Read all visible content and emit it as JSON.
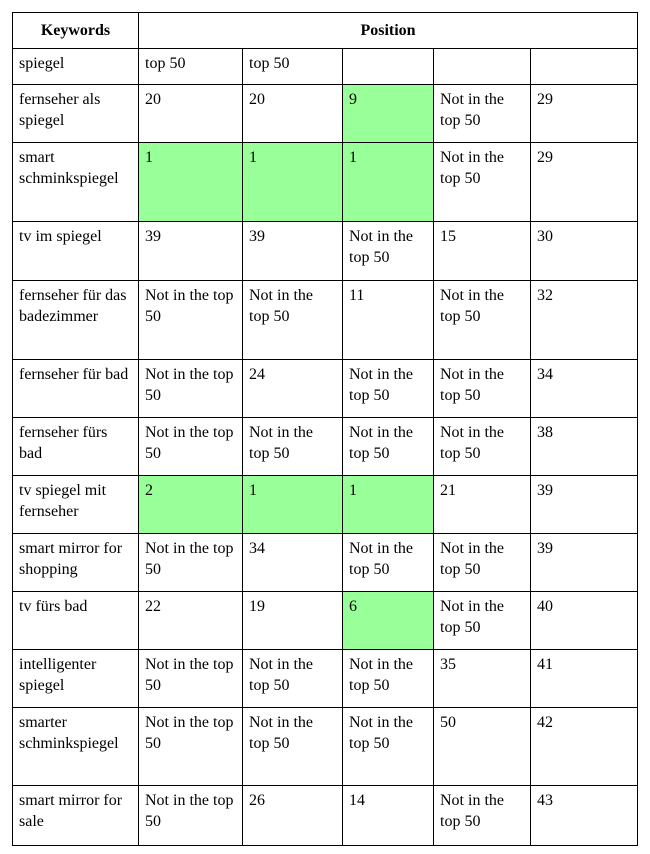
{
  "header": {
    "keywords": "Keywords",
    "position": "Position"
  },
  "highlight_color": "#99ff99",
  "rows": [
    {
      "keyword": "spiegel",
      "cells": [
        "top 50",
        "top 50",
        "",
        "",
        ""
      ],
      "highlight": [
        false,
        false,
        false,
        false,
        false
      ]
    },
    {
      "keyword": "fernseher als spiegel",
      "cells": [
        "20",
        "20",
        "9",
        "Not in the top 50",
        "29"
      ],
      "highlight": [
        false,
        false,
        true,
        false,
        false
      ]
    },
    {
      "keyword": "smart schminkspiegel",
      "cells": [
        "1",
        "1",
        "1",
        "Not in the top 50",
        "29"
      ],
      "highlight": [
        true,
        true,
        true,
        false,
        false
      ]
    },
    {
      "keyword": "tv im spiegel",
      "cells": [
        "39",
        "39",
        "Not in the top 50",
        "15",
        "30"
      ],
      "highlight": [
        false,
        false,
        false,
        false,
        false
      ]
    },
    {
      "keyword": "fernseher für das badezimmer",
      "cells": [
        "Not in the top 50",
        "Not in the top 50",
        "11",
        "Not in the top 50",
        "32"
      ],
      "highlight": [
        false,
        false,
        false,
        false,
        false
      ]
    },
    {
      "keyword": "fernseher für bad",
      "cells": [
        "Not in the top 50",
        "24",
        "Not in the top 50",
        "Not in the top 50",
        "34"
      ],
      "highlight": [
        false,
        false,
        false,
        false,
        false
      ]
    },
    {
      "keyword": "fernseher fürs bad",
      "cells": [
        "Not in the top 50",
        "Not in the top 50",
        "Not in the top 50",
        "Not in the top 50",
        "38"
      ],
      "highlight": [
        false,
        false,
        false,
        false,
        false
      ]
    },
    {
      "keyword": "tv spiegel mit fernseher",
      "cells": [
        "2",
        "1",
        "1",
        "21",
        "39"
      ],
      "highlight": [
        true,
        true,
        true,
        false,
        false
      ]
    },
    {
      "keyword": "smart mirror for shopping",
      "cells": [
        "Not in the top 50",
        "34",
        "Not in the top 50",
        "Not in the top 50",
        "39"
      ],
      "highlight": [
        false,
        false,
        false,
        false,
        false
      ]
    },
    {
      "keyword": "tv fürs bad",
      "cells": [
        "22",
        "19",
        "6",
        "Not in the top 50",
        "40"
      ],
      "highlight": [
        false,
        false,
        true,
        false,
        false
      ]
    },
    {
      "keyword": "intelligenter spiegel",
      "cells": [
        "Not in the top 50",
        "Not in the top 50",
        "Not in the top 50",
        "35",
        "41"
      ],
      "highlight": [
        false,
        false,
        false,
        false,
        false
      ]
    },
    {
      "keyword": "smarter schminkspiegel",
      "cells": [
        "Not in the top 50",
        "Not in the top 50",
        "Not in the top 50",
        "50",
        "42"
      ],
      "highlight": [
        false,
        false,
        false,
        false,
        false
      ]
    },
    {
      "keyword": "smart mirror for sale",
      "cells": [
        "Not in the top 50",
        "26",
        "14",
        "Not in the top 50",
        "43"
      ],
      "highlight": [
        false,
        false,
        false,
        false,
        false
      ]
    }
  ]
}
